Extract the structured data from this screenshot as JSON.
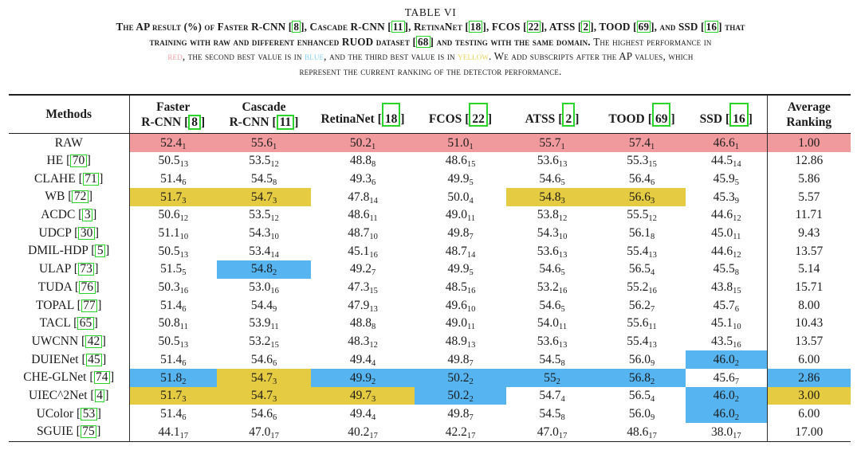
{
  "caption": {
    "label": "TABLE VI",
    "lines": [
      [
        {
          "t": "The AP result (%) of Faster R-CNN ",
          "s": "b"
        },
        {
          "cite": "8",
          "s": "b"
        },
        {
          "t": ", Cascade R-CNN ",
          "s": "b"
        },
        {
          "cite": "11",
          "s": "b"
        },
        {
          "t": ", RetinaNet ",
          "s": "b"
        },
        {
          "cite": "18",
          "s": "b"
        },
        {
          "t": ", FCOS ",
          "s": "b"
        },
        {
          "cite": "22",
          "s": "b"
        },
        {
          "t": ", ATSS ",
          "s": "b"
        },
        {
          "cite": "2",
          "s": "b"
        },
        {
          "t": ", TOOD ",
          "s": "b"
        },
        {
          "cite": "69",
          "s": "b"
        },
        {
          "t": ", and SSD ",
          "s": "b"
        },
        {
          "cite": "16",
          "s": "b"
        },
        {
          "t": " that",
          "s": "b"
        }
      ],
      [
        {
          "t": "training with raw and different enhanced RUOD dataset ",
          "s": "b"
        },
        {
          "cite": "68",
          "s": "b"
        },
        {
          "t": " and testing with the same domain. ",
          "s": "b"
        },
        {
          "t": "The highest performance in",
          "s": "r"
        }
      ],
      [
        {
          "t": "red",
          "s": "red"
        },
        {
          "t": ", the second best value is in ",
          "s": "r"
        },
        {
          "t": "blue",
          "s": "blue"
        },
        {
          "t": ", and the third best value is in ",
          "s": "r"
        },
        {
          "t": "yellow",
          "s": "yellow"
        },
        {
          "t": ". We add subscripts after the AP values, which",
          "s": "r"
        }
      ],
      [
        {
          "t": "represent the current ranking of the detector performance.",
          "s": "r"
        }
      ]
    ]
  },
  "colors": {
    "highlight_red": "#f09a9e",
    "highlight_blue": "#56b4f0",
    "highlight_yellow": "#e5cb42",
    "citation_box_green": "#2bd42b"
  },
  "table": {
    "methods_header": "Methods",
    "columns": [
      {
        "lines": [
          "Faster",
          "R-CNN"
        ],
        "cite": "8",
        "tall": false
      },
      {
        "lines": [
          "Cascade",
          "R-CNN"
        ],
        "cite": "11",
        "tall": false
      },
      {
        "lines": [
          "RetinaNet"
        ],
        "cite": "18",
        "tall": true
      },
      {
        "lines": [
          "FCOS"
        ],
        "cite": "22",
        "tall": true
      },
      {
        "lines": [
          "ATSS"
        ],
        "cite": "2",
        "tall": true
      },
      {
        "lines": [
          "TOOD"
        ],
        "cite": "69",
        "tall": true
      },
      {
        "lines": [
          "SSD"
        ],
        "cite": "16",
        "tall": true
      },
      {
        "lines": [
          "Average",
          "Ranking"
        ],
        "cite": null,
        "tall": false
      }
    ],
    "cell_format": [
      "ap_value",
      "rank_subscript",
      "highlight"
    ],
    "rows": [
      {
        "m": "RAW",
        "c": null,
        "cells": [
          [
            "52.4",
            "1",
            "red"
          ],
          [
            "55.6",
            "1",
            "red"
          ],
          [
            "50.2",
            "1",
            "red"
          ],
          [
            "51.0",
            "1",
            "red"
          ],
          [
            "55.7",
            "1",
            "red"
          ],
          [
            "57.4",
            "1",
            "red"
          ],
          [
            "46.6",
            "1",
            "red"
          ]
        ],
        "avg": [
          "1.00",
          "red"
        ]
      },
      {
        "m": "HE",
        "c": "70",
        "cells": [
          [
            "50.5",
            "13",
            ""
          ],
          [
            "53.5",
            "12",
            ""
          ],
          [
            "48.8",
            "8",
            ""
          ],
          [
            "48.6",
            "15",
            ""
          ],
          [
            "53.6",
            "13",
            ""
          ],
          [
            "55.3",
            "15",
            ""
          ],
          [
            "44.5",
            "14",
            ""
          ]
        ],
        "avg": [
          "12.86",
          ""
        ]
      },
      {
        "m": "CLAHE",
        "c": "71",
        "cells": [
          [
            "51.4",
            "6",
            ""
          ],
          [
            "54.5",
            "8",
            ""
          ],
          [
            "49.3",
            "6",
            ""
          ],
          [
            "49.9",
            "5",
            ""
          ],
          [
            "54.6",
            "5",
            ""
          ],
          [
            "56.4",
            "6",
            ""
          ],
          [
            "45.9",
            "5",
            ""
          ]
        ],
        "avg": [
          "5.86",
          ""
        ]
      },
      {
        "m": "WB",
        "c": "72",
        "cells": [
          [
            "51.7",
            "3",
            "yellow"
          ],
          [
            "54.7",
            "3",
            "yellow"
          ],
          [
            "47.8",
            "14",
            ""
          ],
          [
            "50.0",
            "4",
            ""
          ],
          [
            "54.8",
            "3",
            "yellow"
          ],
          [
            "56.6",
            "3",
            "yellow"
          ],
          [
            "45.3",
            "9",
            ""
          ]
        ],
        "avg": [
          "5.57",
          ""
        ]
      },
      {
        "m": "ACDC",
        "c": "3",
        "cells": [
          [
            "50.6",
            "12",
            ""
          ],
          [
            "53.5",
            "12",
            ""
          ],
          [
            "48.6",
            "11",
            ""
          ],
          [
            "49.0",
            "11",
            ""
          ],
          [
            "53.8",
            "12",
            ""
          ],
          [
            "55.5",
            "12",
            ""
          ],
          [
            "44.6",
            "12",
            ""
          ]
        ],
        "avg": [
          "11.71",
          ""
        ]
      },
      {
        "m": "UDCP",
        "c": "30",
        "cells": [
          [
            "51.1",
            "10",
            ""
          ],
          [
            "54.3",
            "10",
            ""
          ],
          [
            "48.7",
            "10",
            ""
          ],
          [
            "49.8",
            "7",
            ""
          ],
          [
            "54.3",
            "10",
            ""
          ],
          [
            "56.1",
            "8",
            ""
          ],
          [
            "45.0",
            "11",
            ""
          ]
        ],
        "avg": [
          "9.43",
          ""
        ]
      },
      {
        "m": "DMIL-HDP",
        "c": "5",
        "cells": [
          [
            "50.5",
            "13",
            ""
          ],
          [
            "53.4",
            "14",
            ""
          ],
          [
            "45.1",
            "16",
            ""
          ],
          [
            "48.7",
            "14",
            ""
          ],
          [
            "53.6",
            "13",
            ""
          ],
          [
            "55.4",
            "13",
            ""
          ],
          [
            "44.6",
            "12",
            ""
          ]
        ],
        "avg": [
          "13.57",
          ""
        ]
      },
      {
        "m": "ULAP",
        "c": "73",
        "cells": [
          [
            "51.5",
            "5",
            ""
          ],
          [
            "54.8",
            "2",
            "blue"
          ],
          [
            "49.2",
            "7",
            ""
          ],
          [
            "49.9",
            "5",
            ""
          ],
          [
            "54.6",
            "5",
            ""
          ],
          [
            "56.5",
            "4",
            ""
          ],
          [
            "45.5",
            "8",
            ""
          ]
        ],
        "avg": [
          "5.14",
          ""
        ]
      },
      {
        "m": "TUDA",
        "c": "76",
        "cells": [
          [
            "50.3",
            "16",
            ""
          ],
          [
            "53.0",
            "16",
            ""
          ],
          [
            "47.3",
            "15",
            ""
          ],
          [
            "48.5",
            "16",
            ""
          ],
          [
            "53.2",
            "16",
            ""
          ],
          [
            "55.2",
            "16",
            ""
          ],
          [
            "43.8",
            "15",
            ""
          ]
        ],
        "avg": [
          "15.71",
          ""
        ]
      },
      {
        "m": "TOPAL",
        "c": "77",
        "cells": [
          [
            "51.4",
            "6",
            ""
          ],
          [
            "54.4",
            "9",
            ""
          ],
          [
            "47.9",
            "13",
            ""
          ],
          [
            "49.6",
            "10",
            ""
          ],
          [
            "54.6",
            "5",
            ""
          ],
          [
            "56.2",
            "7",
            ""
          ],
          [
            "45.7",
            "6",
            ""
          ]
        ],
        "avg": [
          "8.00",
          ""
        ]
      },
      {
        "m": "TACL",
        "c": "65",
        "cells": [
          [
            "50.8",
            "11",
            ""
          ],
          [
            "53.9",
            "11",
            ""
          ],
          [
            "48.8",
            "8",
            ""
          ],
          [
            "49.0",
            "11",
            ""
          ],
          [
            "54.0",
            "11",
            ""
          ],
          [
            "55.6",
            "11",
            ""
          ],
          [
            "45.1",
            "10",
            ""
          ]
        ],
        "avg": [
          "10.43",
          ""
        ]
      },
      {
        "m": "UWCNN",
        "c": "42",
        "cells": [
          [
            "50.5",
            "13",
            ""
          ],
          [
            "53.2",
            "15",
            ""
          ],
          [
            "48.3",
            "12",
            ""
          ],
          [
            "48.9",
            "13",
            ""
          ],
          [
            "53.6",
            "13",
            ""
          ],
          [
            "55.4",
            "13",
            ""
          ],
          [
            "43.5",
            "16",
            ""
          ]
        ],
        "avg": [
          "13.57",
          ""
        ]
      },
      {
        "m": "DUIENet",
        "c": "45",
        "cells": [
          [
            "51.4",
            "6",
            ""
          ],
          [
            "54.6",
            "6",
            ""
          ],
          [
            "49.4",
            "4",
            ""
          ],
          [
            "49.8",
            "7",
            ""
          ],
          [
            "54.5",
            "8",
            ""
          ],
          [
            "56.0",
            "9",
            ""
          ],
          [
            "46.0",
            "2",
            "blue"
          ]
        ],
        "avg": [
          "6.00",
          ""
        ]
      },
      {
        "m": "CHE-GLNet",
        "c": "74",
        "cells": [
          [
            "51.8",
            "2",
            "blue"
          ],
          [
            "54.7",
            "3",
            "yellow"
          ],
          [
            "49.9",
            "2",
            "blue"
          ],
          [
            "50.2",
            "2",
            "blue"
          ],
          [
            "55",
            "2",
            "blue"
          ],
          [
            "56.8",
            "2",
            "blue"
          ],
          [
            "45.6",
            "7",
            ""
          ]
        ],
        "avg": [
          "2.86",
          "blue"
        ]
      },
      {
        "m": "UIEC^2Net",
        "c": "4",
        "cells": [
          [
            "51.7",
            "3",
            "yellow"
          ],
          [
            "54.7",
            "3",
            "yellow"
          ],
          [
            "49.7",
            "3",
            "yellow"
          ],
          [
            "50.2",
            "2",
            "blue"
          ],
          [
            "54.7",
            "4",
            ""
          ],
          [
            "56.5",
            "4",
            ""
          ],
          [
            "46.0",
            "2",
            "blue"
          ]
        ],
        "avg": [
          "3.00",
          "yellow"
        ]
      },
      {
        "m": "UColor",
        "c": "53",
        "cells": [
          [
            "51.4",
            "6",
            ""
          ],
          [
            "54.6",
            "6",
            ""
          ],
          [
            "49.4",
            "4",
            ""
          ],
          [
            "49.8",
            "7",
            ""
          ],
          [
            "54.5",
            "8",
            ""
          ],
          [
            "56.0",
            "9",
            ""
          ],
          [
            "46.0",
            "2",
            "blue"
          ]
        ],
        "avg": [
          "6.00",
          ""
        ]
      },
      {
        "m": "SGUIE",
        "c": "75",
        "cells": [
          [
            "44.1",
            "17",
            ""
          ],
          [
            "47.0",
            "17",
            ""
          ],
          [
            "40.2",
            "17",
            ""
          ],
          [
            "42.2",
            "17",
            ""
          ],
          [
            "47.0",
            "17",
            ""
          ],
          [
            "48.6",
            "17",
            ""
          ],
          [
            "38.0",
            "17",
            ""
          ]
        ],
        "avg": [
          "17.00",
          ""
        ]
      }
    ]
  }
}
